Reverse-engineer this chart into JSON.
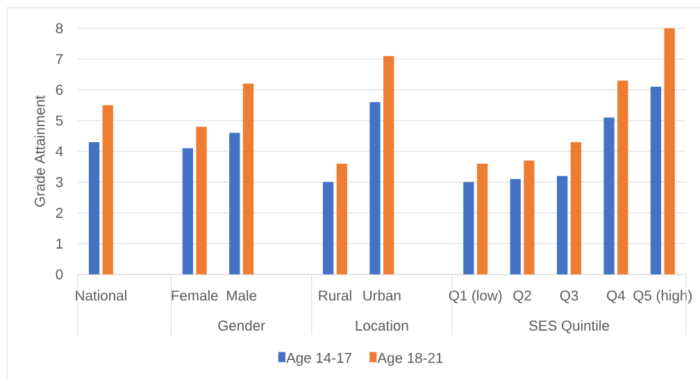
{
  "chart_data": {
    "type": "bar",
    "ylabel": "Grade Attainment",
    "categories": [
      "National",
      null,
      "Female",
      "Male",
      null,
      "Rural",
      "Urban",
      null,
      "Q1 (low)",
      "Q2",
      "Q3",
      "Q4",
      "Q5 (high)"
    ],
    "series": [
      {
        "name": "Age 14-17",
        "color": "#4472c4",
        "values": [
          4.3,
          null,
          4.1,
          4.6,
          null,
          3.0,
          5.6,
          null,
          3.0,
          3.1,
          3.2,
          5.1,
          6.1
        ]
      },
      {
        "name": "Age 18-21",
        "color": "#ed7d31",
        "values": [
          5.5,
          null,
          4.8,
          6.2,
          null,
          3.6,
          7.1,
          null,
          3.6,
          3.7,
          4.3,
          6.3,
          8.0
        ]
      }
    ],
    "annotations": [
      "Gender",
      "Location",
      "SES Quintile"
    ],
    "ylim": [
      0,
      8
    ],
    "yticks": [
      0,
      1,
      2,
      3,
      4,
      5,
      6,
      7,
      8
    ],
    "grid": "y",
    "legend": "bottom"
  }
}
